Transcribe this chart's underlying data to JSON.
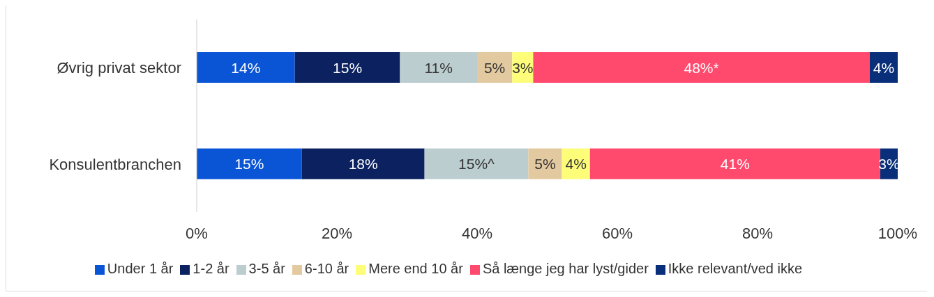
{
  "chart_data": {
    "type": "bar",
    "orientation": "horizontal",
    "stacked": true,
    "categories": [
      "Øvrig privat sektor",
      "Konsulentbranchen"
    ],
    "series": [
      {
        "name": "Under 1 år",
        "color": "#0a55d6",
        "values": [
          14,
          15
        ],
        "value_labels": [
          "14%",
          "15%"
        ]
      },
      {
        "name": "1-2 år",
        "color": "#0b2160",
        "values": [
          15,
          17.5
        ],
        "value_labels": [
          "15%",
          "18%"
        ]
      },
      {
        "name": "3-5 år",
        "color": "#bccdd0",
        "values": [
          11,
          14.8
        ],
        "value_labels": [
          "11%",
          "15%^"
        ]
      },
      {
        "name": "6-10 år",
        "color": "#e3c9a0",
        "values": [
          5,
          4.8
        ],
        "value_labels": [
          "5%",
          "5%"
        ]
      },
      {
        "name": "Mere end 10 år",
        "color": "#fdfd7a",
        "values": [
          3,
          4
        ],
        "value_labels": [
          "3%",
          "4%"
        ]
      },
      {
        "name": "Så længe jeg har lyst/gider",
        "color": "#ff4a6e",
        "values": [
          48,
          41.4
        ],
        "value_labels": [
          "48%*",
          "41%"
        ]
      },
      {
        "name": "Ikke relevant/ved ikke",
        "color": "#0a2f7a",
        "values": [
          4,
          2.5
        ],
        "value_labels": [
          "4%",
          "3%"
        ]
      }
    ],
    "xlim": [
      0,
      100
    ],
    "xticks": [
      {
        "value": 0,
        "label": "0%"
      },
      {
        "value": 20,
        "label": "20%"
      },
      {
        "value": 40,
        "label": "40%"
      },
      {
        "value": 60,
        "label": "60%"
      },
      {
        "value": 80,
        "label": "80%"
      },
      {
        "value": 100,
        "label": "100%"
      }
    ],
    "grid": false,
    "legend": "bottom"
  }
}
